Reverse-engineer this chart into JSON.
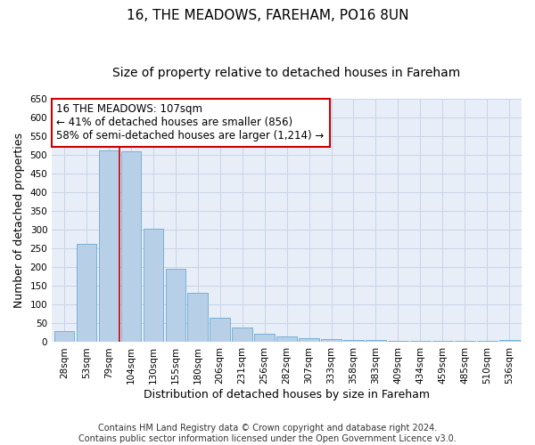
{
  "title1": "16, THE MEADOWS, FAREHAM, PO16 8UN",
  "title2": "Size of property relative to detached houses in Fareham",
  "xlabel": "Distribution of detached houses by size in Fareham",
  "ylabel": "Number of detached properties",
  "categories": [
    "28sqm",
    "53sqm",
    "79sqm",
    "104sqm",
    "130sqm",
    "155sqm",
    "180sqm",
    "206sqm",
    "231sqm",
    "256sqm",
    "282sqm",
    "307sqm",
    "333sqm",
    "358sqm",
    "383sqm",
    "409sqm",
    "434sqm",
    "459sqm",
    "485sqm",
    "510sqm",
    "536sqm"
  ],
  "values": [
    30,
    262,
    512,
    510,
    302,
    196,
    132,
    65,
    38,
    22,
    16,
    10,
    8,
    5,
    5,
    4,
    4,
    4,
    3,
    4,
    5
  ],
  "bar_color": "#b8cfe8",
  "bar_edge_color": "#6aaad4",
  "ylim": [
    0,
    650
  ],
  "yticks": [
    0,
    50,
    100,
    150,
    200,
    250,
    300,
    350,
    400,
    450,
    500,
    550,
    600,
    650
  ],
  "vline_x": 3.5,
  "vline_color": "#cc0000",
  "annotation_text": "16 THE MEADOWS: 107sqm\n← 41% of detached houses are smaller (856)\n58% of semi-detached houses are larger (1,214) →",
  "grid_color": "#c8d4e8",
  "background_color": "#e8eef8",
  "footer_text": "Contains HM Land Registry data © Crown copyright and database right 2024.\nContains public sector information licensed under the Open Government Licence v3.0.",
  "title1_fontsize": 11,
  "title2_fontsize": 10,
  "xlabel_fontsize": 9,
  "ylabel_fontsize": 9,
  "tick_fontsize": 7.5,
  "annotation_fontsize": 8.5,
  "footer_fontsize": 7
}
